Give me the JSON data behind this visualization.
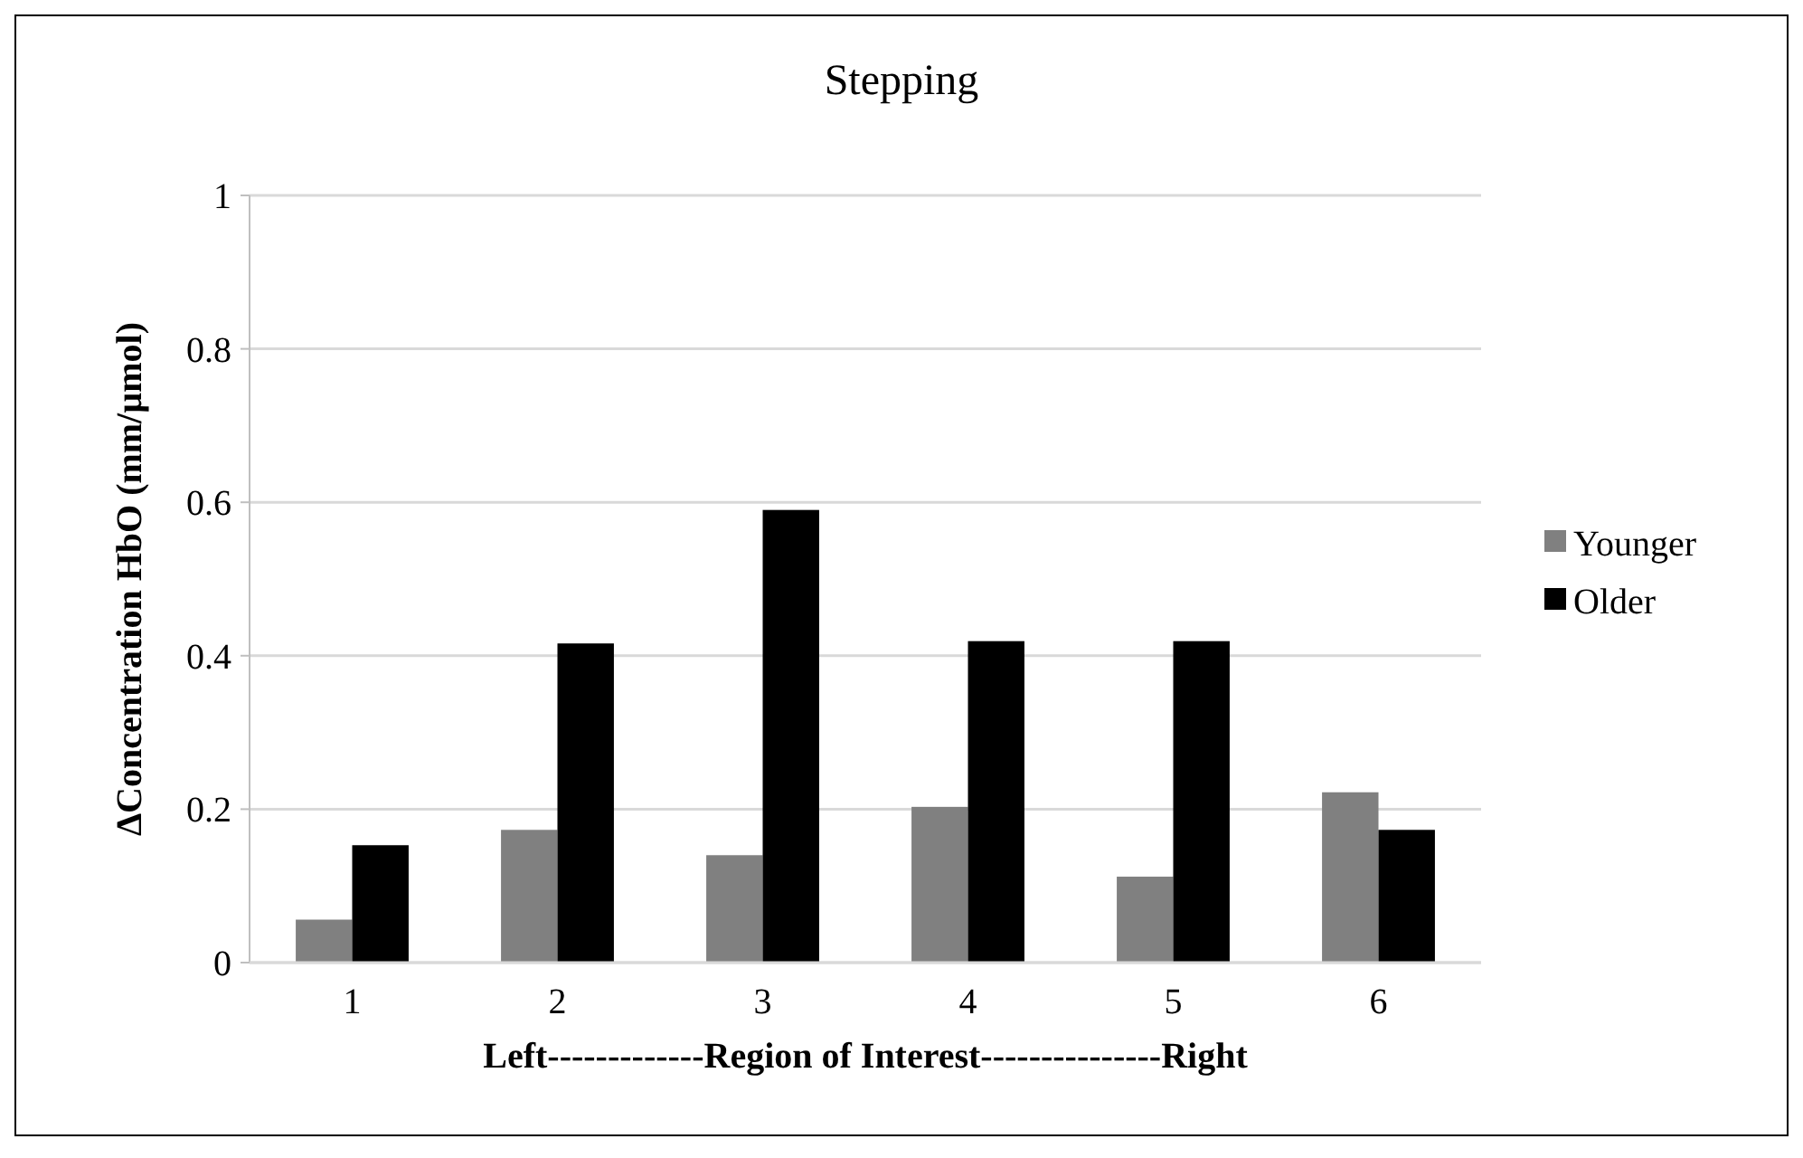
{
  "chart_data": {
    "type": "bar",
    "title": "Stepping",
    "xlabel": "Left-------------Region of Interest---------------Right",
    "ylabel": "ΔConcentration HbO (mm/µmol)",
    "categories": [
      "1",
      "2",
      "3",
      "4",
      "5",
      "6"
    ],
    "series": [
      {
        "name": "Younger",
        "color": "#808080",
        "values": [
          0.056,
          0.173,
          0.14,
          0.203,
          0.112,
          0.222
        ]
      },
      {
        "name": "Older",
        "color": "#000000",
        "values": [
          0.153,
          0.416,
          0.59,
          0.419,
          0.419,
          0.173
        ]
      }
    ],
    "ylim": [
      0,
      1
    ],
    "yticks": [
      0,
      0.2,
      0.4,
      0.6,
      0.8,
      1
    ],
    "grid": "y",
    "legend": "right"
  }
}
